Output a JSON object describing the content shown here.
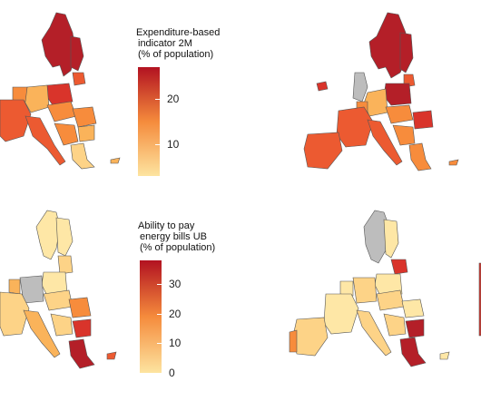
{
  "legends": [
    {
      "title_lines": [
        "Expenditure-based",
        "indicator 2M",
        "(% of population)"
      ],
      "ticks": [
        {
          "value": 20,
          "label": "20"
        },
        {
          "value": 10,
          "label": "10"
        }
      ],
      "range": [
        3,
        27
      ],
      "colors": {
        "low": "#fde4a0",
        "mid": "#f58b3c",
        "high": "#b21221"
      }
    },
    {
      "title_lines": [
        "Ability to pay",
        "energy bills UB",
        "(% of population)"
      ],
      "ticks": [
        {
          "value": 30,
          "label": "30"
        },
        {
          "value": 20,
          "label": "20"
        },
        {
          "value": 10,
          "label": "10"
        },
        {
          "value": 0,
          "label": "0"
        }
      ],
      "range": [
        0,
        38
      ],
      "colors": {
        "low": "#fde4a0",
        "mid": "#f58b3c",
        "high": "#b21221"
      }
    }
  ],
  "colors": {
    "border": "#555555",
    "missing": "#bdbdbd",
    "very_high": "#b41f28",
    "high": "#d9342b",
    "mid_high": "#ec5a31",
    "mid": "#f78c3c",
    "mid_low": "#fab35a",
    "low": "#fdd387",
    "very_low": "#fee7a6"
  }
}
